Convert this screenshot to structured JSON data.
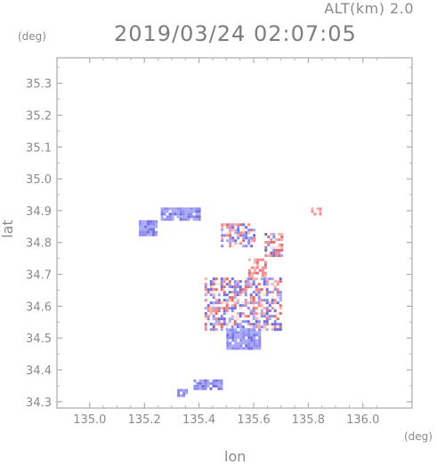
{
  "header": {
    "altitude": "ALT(km) 2.0",
    "datetime": "2019/03/24 02:07:05"
  },
  "axis_units": {
    "x": "(deg)",
    "y": "(deg)"
  },
  "chart_data": {
    "type": "heatmap",
    "title": "2019/03/24 02:07:05",
    "subtitle": "ALT(km) 2.0",
    "xlabel": "lon",
    "ylabel": "lat",
    "xlim": [
      134.88,
      136.18
    ],
    "ylim": [
      34.28,
      35.38
    ],
    "xticks": [
      "135.0",
      "135.2",
      "135.4",
      "135.6",
      "135.8",
      "136.0"
    ],
    "xtick_values": [
      135.0,
      135.2,
      135.4,
      135.6,
      135.8,
      136.0
    ],
    "yticks": [
      "34.3",
      "34.4",
      "34.5",
      "34.6",
      "34.7",
      "34.8",
      "34.9",
      "35.0",
      "35.1",
      "35.2",
      "35.3"
    ],
    "ytick_values": [
      34.3,
      34.4,
      34.5,
      34.6,
      34.7,
      34.8,
      34.9,
      35.0,
      35.1,
      35.2,
      35.3
    ],
    "grid": false,
    "colors": {
      "negative": "#8c8cf0",
      "positive": "#f08c8c",
      "neutral": "#f4e4e4"
    },
    "regions": [
      {
        "lon": [
          135.26,
          135.4
        ],
        "lat": [
          34.87,
          34.91
        ],
        "sign": "negative"
      },
      {
        "lon": [
          135.18,
          135.24
        ],
        "lat": [
          34.82,
          34.87
        ],
        "sign": "negative"
      },
      {
        "lon": [
          135.48,
          135.6
        ],
        "lat": [
          34.79,
          34.86
        ],
        "sign": "mixed"
      },
      {
        "lon": [
          135.58,
          135.64
        ],
        "lat": [
          34.69,
          34.75
        ],
        "sign": "positive"
      },
      {
        "lon": [
          135.42,
          135.7
        ],
        "lat": [
          34.53,
          34.69
        ],
        "sign": "mixed"
      },
      {
        "lon": [
          135.5,
          135.62
        ],
        "lat": [
          34.47,
          34.53
        ],
        "sign": "negative"
      },
      {
        "lon": [
          135.38,
          135.48
        ],
        "lat": [
          34.34,
          34.37
        ],
        "sign": "negative"
      },
      {
        "lon": [
          135.32,
          135.35
        ],
        "lat": [
          34.32,
          34.34
        ],
        "sign": "negative"
      },
      {
        "lon": [
          135.81,
          135.84
        ],
        "lat": [
          34.89,
          34.91
        ],
        "sign": "positive"
      },
      {
        "lon": [
          135.64,
          135.7
        ],
        "lat": [
          34.76,
          34.83
        ],
        "sign": "mixed"
      }
    ]
  }
}
